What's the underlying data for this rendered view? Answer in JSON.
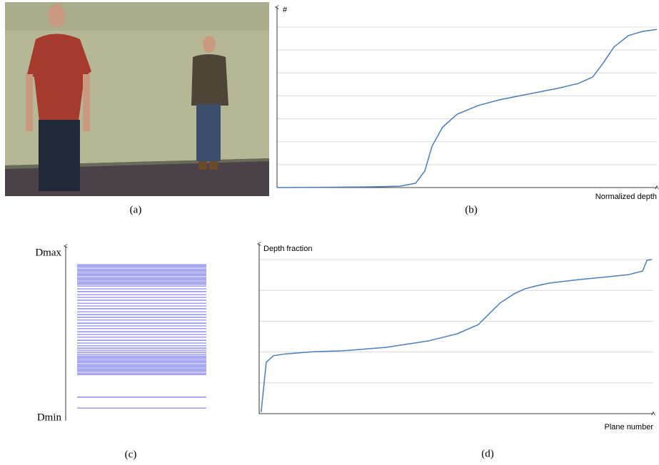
{
  "photo": {
    "caption": "(a)"
  },
  "chart_data": [
    {
      "type": "line",
      "y_label": "#",
      "x_label": "Normalized depth",
      "caption": "(b)",
      "x": [
        0,
        0.117,
        0.248,
        0.323,
        0.365,
        0.389,
        0.408,
        0.436,
        0.474,
        0.53,
        0.586,
        0.662,
        0.737,
        0.793,
        0.831,
        0.859,
        0.887,
        0.925,
        0.962,
        1.0
      ],
      "values": [
        0,
        0.01,
        0.03,
        0.06,
        0.19,
        0.72,
        1.8,
        2.64,
        3.2,
        3.58,
        3.83,
        4.08,
        4.32,
        4.54,
        4.82,
        5.44,
        6.13,
        6.63,
        6.81,
        6.9
      ],
      "xlim": [
        0,
        1
      ],
      "ylim": [
        0,
        7
      ],
      "yticks": [
        1,
        2,
        3,
        4,
        5,
        6,
        7
      ],
      "tick_labels": false,
      "grid": true,
      "color": "#4a7ebb"
    },
    {
      "type": "strip",
      "y_label_top": "Dmax",
      "y_label_bottom": "Dmin",
      "caption": "(c)",
      "values": [
        0.073,
        0.135,
        0.265,
        0.273,
        0.282,
        0.29,
        0.298,
        0.306,
        0.314,
        0.322,
        0.331,
        0.339,
        0.347,
        0.355,
        0.363,
        0.371,
        0.38,
        0.392,
        0.404,
        0.416,
        0.429,
        0.445,
        0.461,
        0.478,
        0.494,
        0.51,
        0.527,
        0.543,
        0.559,
        0.576,
        0.592,
        0.608,
        0.624,
        0.641,
        0.657,
        0.673,
        0.69,
        0.706,
        0.722,
        0.739,
        0.755,
        0.771,
        0.78,
        0.788,
        0.796,
        0.804,
        0.812,
        0.82,
        0.829,
        0.837,
        0.845,
        0.853,
        0.861,
        0.869,
        0.878,
        0.886,
        0.894
      ],
      "ylim": [
        0,
        1
      ],
      "color": "#3a3ae0"
    },
    {
      "type": "line",
      "y_label": "Depth fraction",
      "x_label": "Plane number",
      "caption": "(d)",
      "x": [
        0.005,
        0.018,
        0.036,
        0.067,
        0.139,
        0.212,
        0.321,
        0.429,
        0.502,
        0.556,
        0.611,
        0.647,
        0.674,
        0.701,
        0.737,
        0.81,
        0.882,
        0.937,
        0.973,
        0.984,
        0.996
      ],
      "values": [
        0.05,
        1.67,
        1.88,
        1.94,
        2.01,
        2.04,
        2.15,
        2.36,
        2.59,
        2.89,
        3.59,
        3.89,
        4.05,
        4.14,
        4.24,
        4.35,
        4.44,
        4.51,
        4.63,
        4.98,
        5.0
      ],
      "xlim": [
        0,
        1
      ],
      "ylim": [
        0,
        5
      ],
      "yticks": [
        1,
        2,
        3,
        4,
        5
      ],
      "tick_labels": false,
      "grid": true,
      "color": "#4a7ebb"
    }
  ]
}
